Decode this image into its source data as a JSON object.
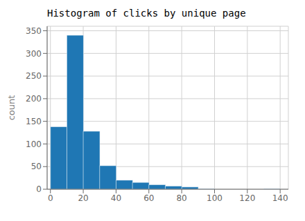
{
  "chart_data": {
    "type": "histogram",
    "title": "Histogram of clicks by unique page",
    "ylabel": "count",
    "bins": [
      0,
      10,
      20,
      30,
      40,
      50,
      60,
      70,
      80,
      90,
      100,
      110,
      120,
      130,
      140
    ],
    "counts": [
      138,
      340,
      128,
      52,
      20,
      15,
      10,
      7,
      5,
      1,
      0,
      0,
      0,
      1
    ],
    "color": "#1f77b4",
    "xlim": [
      -2,
      145
    ],
    "ylim": [
      0,
      360
    ],
    "xticks": [
      0,
      20,
      40,
      60,
      80,
      100,
      120,
      140
    ],
    "yticks": [
      0,
      50,
      100,
      150,
      200,
      250,
      300,
      350
    ],
    "grid": true
  }
}
